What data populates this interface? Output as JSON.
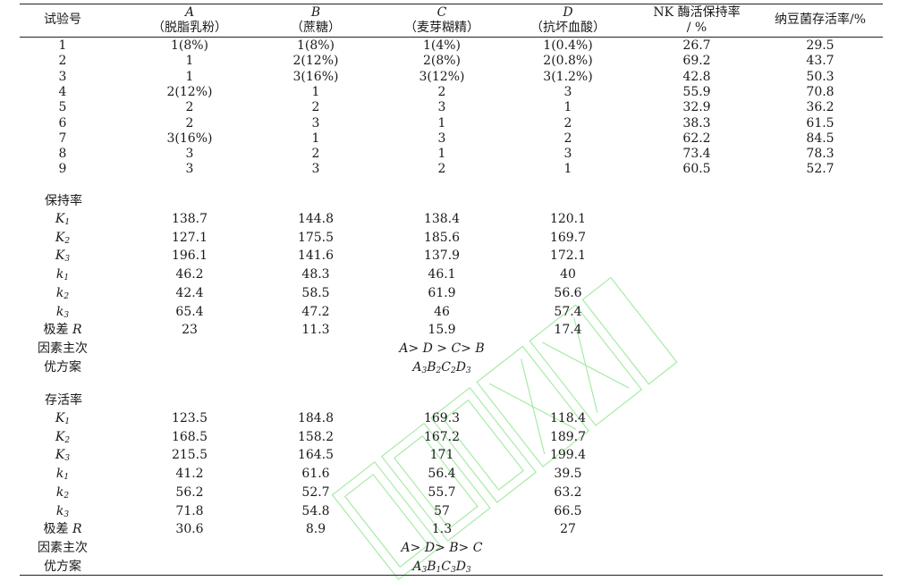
{
  "header": {
    "col0": "试验号",
    "col1_factor": "A",
    "col1_name": "（脱脂乳粉）",
    "col2_factor": "B",
    "col2_name": "（蔗糖）",
    "col3_factor": "C",
    "col3_name": "（麦芽糊精）",
    "col4_factor": "D",
    "col4_name": "（抗坏血酸）",
    "col5_line1": "NK 酶活保持率",
    "col5_line2": "/ %",
    "col6": "纳豆菌存活率/%"
  },
  "trials": [
    [
      "1",
      "1(8%)",
      "1(8%)",
      "1(4%)",
      "1(0.4%)",
      "26.7",
      "29.5"
    ],
    [
      "2",
      "1",
      "2(12%)",
      "2(8%)",
      "2(0.8%)",
      "69.2",
      "43.7"
    ],
    [
      "3",
      "1",
      "3(16%)",
      "3(12%)",
      "3(1.2%)",
      "42.8",
      "50.3"
    ],
    [
      "4",
      "2(12%)",
      "1",
      "2",
      "3",
      "55.9",
      "70.8"
    ],
    [
      "5",
      "2",
      "2",
      "3",
      "1",
      "32.9",
      "36.2"
    ],
    [
      "6",
      "2",
      "3",
      "1",
      "2",
      "38.3",
      "61.5"
    ],
    [
      "7",
      "3(16%)",
      "1",
      "3",
      "2",
      "62.2",
      "84.5"
    ],
    [
      "8",
      "3",
      "2",
      "1",
      "3",
      "73.4",
      "78.3"
    ],
    [
      "9",
      "3",
      "3",
      "2",
      "1",
      "60.5",
      "52.7"
    ]
  ],
  "retention": {
    "title": "保持率",
    "rows": [
      {
        "sym": "K",
        "sub": "1",
        "vals": [
          "138.7",
          "144.8",
          "138.4",
          "120.1"
        ]
      },
      {
        "sym": "K",
        "sub": "2",
        "vals": [
          "127.1",
          "175.5",
          "185.6",
          "169.7"
        ]
      },
      {
        "sym": "K",
        "sub": "3",
        "vals": [
          "196.1",
          "141.6",
          "137.9",
          "172.1"
        ]
      },
      {
        "sym": "k",
        "sub": "1",
        "vals": [
          "46.2",
          "48.3",
          "46.1",
          "40"
        ]
      },
      {
        "sym": "k",
        "sub": "2",
        "vals": [
          "42.4",
          "58.5",
          "61.9",
          "56.6"
        ]
      },
      {
        "sym": "k",
        "sub": "3",
        "vals": [
          "65.4",
          "47.2",
          "46",
          "57.4"
        ]
      }
    ],
    "range_label": "极差 ",
    "range_sym": "R",
    "range_vals": [
      "23",
      "11.3",
      "15.9",
      "17.4"
    ],
    "order_label": "因素主次",
    "order_value": "A> D > C> B",
    "optimal_label": "优方案",
    "optimal": [
      {
        "l": "A",
        "s": "3"
      },
      {
        "l": "B",
        "s": "2"
      },
      {
        "l": "C",
        "s": "2"
      },
      {
        "l": "D",
        "s": "3"
      }
    ]
  },
  "survival": {
    "title": "存活率",
    "rows": [
      {
        "sym": "K",
        "sub": "1",
        "vals": [
          "123.5",
          "184.8",
          "169.3",
          "118.4"
        ]
      },
      {
        "sym": "K",
        "sub": "2",
        "vals": [
          "168.5",
          "158.2",
          "167.2",
          "189.7"
        ]
      },
      {
        "sym": "K",
        "sub": "3",
        "vals": [
          "215.5",
          "164.5",
          "171",
          "199.4"
        ]
      },
      {
        "sym": "k",
        "sub": "1",
        "vals": [
          "41.2",
          "61.6",
          "56.4",
          "39.5"
        ]
      },
      {
        "sym": "k",
        "sub": "2",
        "vals": [
          "56.2",
          "52.7",
          "55.7",
          "63.2"
        ]
      },
      {
        "sym": "k",
        "sub": "3",
        "vals": [
          "71.8",
          "54.8",
          "57",
          "66.5"
        ]
      }
    ],
    "range_label": "极差 ",
    "range_sym": "R",
    "range_vals": [
      "30.6",
      "8.9",
      "1.3",
      "27"
    ],
    "order_label": "因素主次",
    "order_value": "A> D> B> C",
    "optimal_label": "优方案",
    "optimal": [
      {
        "l": "A",
        "s": "3"
      },
      {
        "l": "B",
        "s": "1"
      },
      {
        "l": "C",
        "s": "3"
      },
      {
        "l": "D",
        "s": "3"
      }
    ]
  },
  "watermark": {
    "color": "#9be89b"
  }
}
